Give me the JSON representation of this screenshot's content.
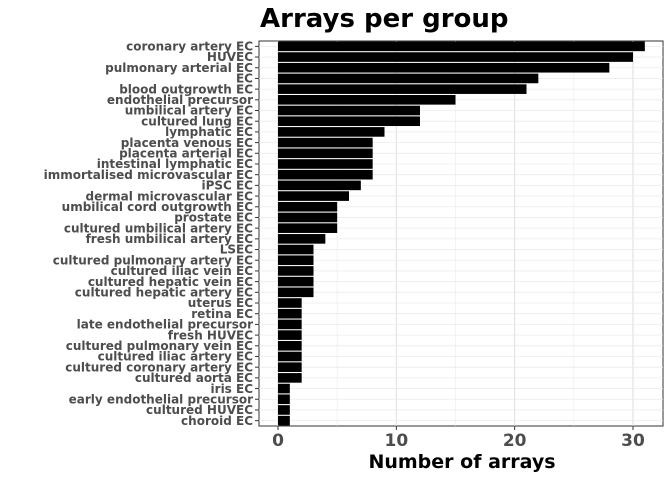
{
  "chart_data": {
    "type": "bar",
    "orientation": "horizontal",
    "title": "Arrays per group",
    "xlabel": "Number of arrays",
    "ylabel": "",
    "xlim": [
      0,
      32.5
    ],
    "xticks": [
      0,
      10,
      20,
      30
    ],
    "grid": true,
    "bar_color": "#000000",
    "categories": [
      "coronary artery EC",
      "HUVEC",
      "pulmonary arterial EC",
      "EC",
      "blood outgrowth EC",
      "endothelial precursor",
      "umbilical artery EC",
      "cultured lung EC",
      "lymphatic EC",
      "placenta venous EC",
      "placenta arterial EC",
      "intestinal lymphatic EC",
      "immortalised microvascular EC",
      "iPSC EC",
      "dermal microvascular EC",
      "umbilical cord outgrowth EC",
      "prostate EC",
      "cultured umbilical artery EC",
      "fresh umbilical artery EC",
      "LSEC",
      "cultured pulmonary artery EC",
      "cultured iliac vein EC",
      "cultured hepatic vein EC",
      "cultured hepatic artery EC",
      "uterus EC",
      "retina EC",
      "late endothelial precursor",
      "fresh HUVEC",
      "cultured pulmonary vein EC",
      "cultured iliac artery EC",
      "cultured coronary artery EC",
      "cultured aorta EC",
      "iris EC",
      "early endothelial precursor",
      "cultured HUVEC",
      "choroid EC"
    ],
    "values": [
      31,
      30,
      28,
      22,
      21,
      15,
      12,
      12,
      9,
      8,
      8,
      8,
      8,
      7,
      6,
      5,
      5,
      5,
      4,
      3,
      3,
      3,
      3,
      3,
      2,
      2,
      2,
      2,
      2,
      2,
      2,
      2,
      1,
      1,
      1,
      1
    ]
  }
}
